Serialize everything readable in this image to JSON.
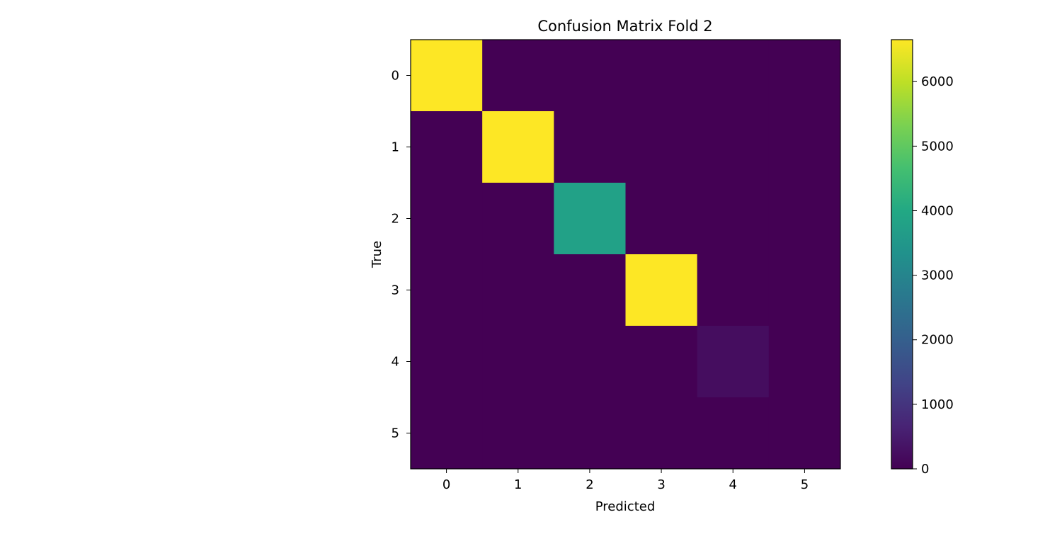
{
  "chart_data": {
    "type": "heatmap",
    "title": "Confusion Matrix Fold 2",
    "xlabel": "Predicted",
    "ylabel": "True",
    "x_categories": [
      "0",
      "1",
      "2",
      "3",
      "4",
      "5"
    ],
    "y_categories": [
      "0",
      "1",
      "2",
      "3",
      "4",
      "5"
    ],
    "values": [
      [
        6650,
        0,
        0,
        0,
        0,
        0
      ],
      [
        0,
        6650,
        0,
        0,
        0,
        0
      ],
      [
        0,
        0,
        3780,
        0,
        0,
        0
      ],
      [
        0,
        0,
        0,
        6650,
        0,
        0
      ],
      [
        0,
        0,
        0,
        0,
        220,
        0
      ],
      [
        0,
        0,
        0,
        0,
        0,
        0
      ]
    ],
    "colorbar": {
      "colormap": "viridis",
      "range": [
        0,
        6650
      ],
      "ticks": [
        0,
        1000,
        2000,
        3000,
        4000,
        5000,
        6000
      ],
      "tick_labels": [
        "0",
        "1000",
        "2000",
        "3000",
        "4000",
        "5000",
        "6000"
      ]
    },
    "grid": false,
    "legend": "none"
  }
}
